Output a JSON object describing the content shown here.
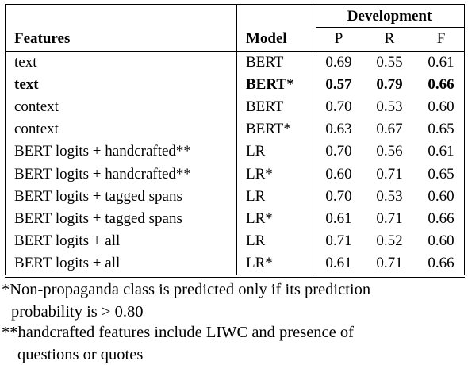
{
  "table": {
    "group_header": "Development",
    "headers": {
      "features": "Features",
      "model": "Model",
      "p": "P",
      "r": "R",
      "f": "F"
    },
    "rows": [
      {
        "features": "text",
        "model": "BERT",
        "p": "0.69",
        "r": "0.55",
        "f": "0.61",
        "bold": false
      },
      {
        "features": "text",
        "model": "BERT*",
        "p": "0.57",
        "r": "0.79",
        "f": "0.66",
        "bold": true
      },
      {
        "features": "context",
        "model": "BERT",
        "p": "0.70",
        "r": "0.53",
        "f": "0.60",
        "bold": false
      },
      {
        "features": "context",
        "model": "BERT*",
        "p": "0.63",
        "r": "0.67",
        "f": "0.65",
        "bold": false
      },
      {
        "features": "BERT logits + handcrafted**",
        "model": "LR",
        "p": "0.70",
        "r": "0.56",
        "f": "0.61",
        "bold": false
      },
      {
        "features": "BERT logits + handcrafted**",
        "model": "LR*",
        "p": "0.60",
        "r": "0.71",
        "f": "0.65",
        "bold": false
      },
      {
        "features": "BERT logits + tagged spans",
        "model": "LR",
        "p": "0.70",
        "r": "0.53",
        "f": "0.60",
        "bold": false
      },
      {
        "features": "BERT logits + tagged spans",
        "model": "LR*",
        "p": "0.61",
        "r": "0.71",
        "f": "0.66",
        "bold": false
      },
      {
        "features": "BERT logits + all",
        "model": "LR",
        "p": "0.71",
        "r": "0.52",
        "f": "0.60",
        "bold": false
      },
      {
        "features": "BERT logits + all",
        "model": "LR*",
        "p": "0.61",
        "r": "0.71",
        "f": "0.66",
        "bold": false
      }
    ]
  },
  "footnotes": {
    "note1_line1": "*Non-propaganda class is predicted only if its prediction",
    "note1_line2": "probability is > 0.80",
    "note2_line1": "**handcrafted features include LIWC and presence of",
    "note2_line2": "questions or quotes"
  }
}
